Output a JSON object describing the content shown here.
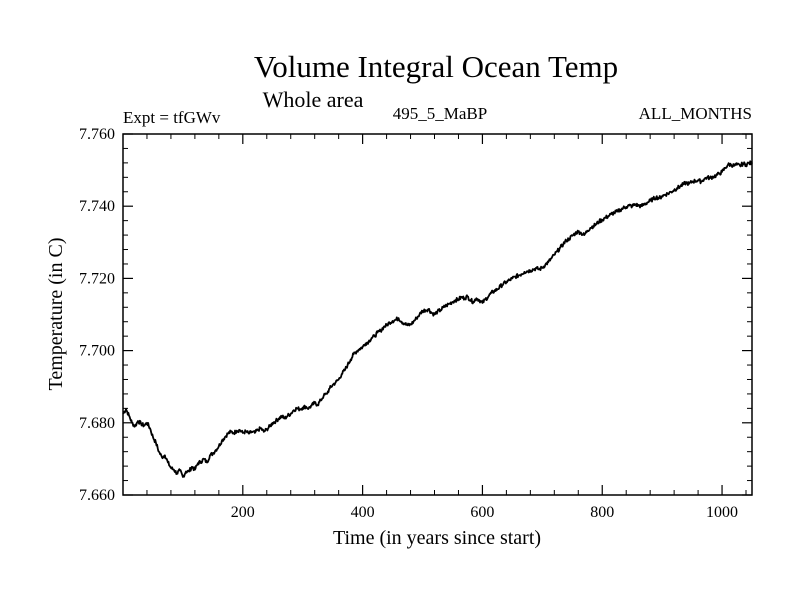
{
  "chart_data": {
    "type": "line",
    "title": "Volume Integral Ocean Temp",
    "subtitle": "Whole area",
    "annotations": {
      "left": "Expt = tfGWv",
      "center": "495_5_MaBP",
      "right": "ALL_MONTHS"
    },
    "xlabel": "Time (in years since start)",
    "ylabel": "Temperature (in C)",
    "xlim": [
      0,
      1050
    ],
    "ylim": [
      7.66,
      7.76
    ],
    "x_ticks": [
      200,
      400,
      600,
      800,
      1000
    ],
    "x_tick_labels": [
      "200",
      "400",
      "600",
      "800",
      "1000"
    ],
    "y_ticks": [
      7.66,
      7.68,
      7.7,
      7.72,
      7.74,
      7.76
    ],
    "y_tick_labels": [
      "7.660",
      "7.680",
      "7.700",
      "7.720",
      "7.740",
      "7.760"
    ],
    "grid": false,
    "series": [
      {
        "name": "Volume Integral Ocean Temp",
        "color": "#000000",
        "points": [
          [
            0,
            7.6825
          ],
          [
            5,
            7.6838
          ],
          [
            10,
            7.682
          ],
          [
            15,
            7.68
          ],
          [
            20,
            7.679
          ],
          [
            25,
            7.6805
          ],
          [
            30,
            7.6798
          ],
          [
            35,
            7.6792
          ],
          [
            40,
            7.68
          ],
          [
            45,
            7.6785
          ],
          [
            50,
            7.676
          ],
          [
            55,
            7.6745
          ],
          [
            60,
            7.672
          ],
          [
            65,
            7.6705
          ],
          [
            70,
            7.671
          ],
          [
            75,
            7.669
          ],
          [
            80,
            7.6675
          ],
          [
            85,
            7.667
          ],
          [
            90,
            7.666
          ],
          [
            95,
            7.6668
          ],
          [
            100,
            7.665
          ],
          [
            105,
            7.6665
          ],
          [
            110,
            7.6665
          ],
          [
            115,
            7.6678
          ],
          [
            120,
            7.667
          ],
          [
            125,
            7.6688
          ],
          [
            130,
            7.6692
          ],
          [
            135,
            7.67
          ],
          [
            140,
            7.669
          ],
          [
            145,
            7.671
          ],
          [
            150,
            7.6715
          ],
          [
            155,
            7.6725
          ],
          [
            160,
            7.6735
          ],
          [
            165,
            7.675
          ],
          [
            170,
            7.676
          ],
          [
            175,
            7.677
          ],
          [
            180,
            7.6775
          ],
          [
            185,
            7.6772
          ],
          [
            190,
            7.6778
          ],
          [
            195,
            7.678
          ],
          [
            200,
            7.6772
          ],
          [
            205,
            7.6776
          ],
          [
            210,
            7.677
          ],
          [
            215,
            7.6775
          ],
          [
            220,
            7.6772
          ],
          [
            225,
            7.678
          ],
          [
            230,
            7.6785
          ],
          [
            235,
            7.6775
          ],
          [
            240,
            7.6782
          ],
          [
            245,
            7.679
          ],
          [
            250,
            7.68
          ],
          [
            255,
            7.6805
          ],
          [
            260,
            7.6812
          ],
          [
            265,
            7.6818
          ],
          [
            270,
            7.6812
          ],
          [
            275,
            7.682
          ],
          [
            280,
            7.6825
          ],
          [
            285,
            7.6835
          ],
          [
            290,
            7.684
          ],
          [
            295,
            7.6838
          ],
          [
            300,
            7.6842
          ],
          [
            305,
            7.6845
          ],
          [
            310,
            7.684
          ],
          [
            315,
            7.6848
          ],
          [
            320,
            7.6855
          ],
          [
            325,
            7.685
          ],
          [
            330,
            7.6862
          ],
          [
            335,
            7.6875
          ],
          [
            340,
            7.688
          ],
          [
            345,
            7.6895
          ],
          [
            350,
            7.6905
          ],
          [
            355,
            7.6912
          ],
          [
            360,
            7.692
          ],
          [
            365,
            7.6935
          ],
          [
            370,
            7.6945
          ],
          [
            375,
            7.696
          ],
          [
            380,
            7.6975
          ],
          [
            385,
            7.699
          ],
          [
            390,
            7.6998
          ],
          [
            395,
            7.7005
          ],
          [
            400,
            7.701
          ],
          [
            405,
            7.702
          ],
          [
            410,
            7.7025
          ],
          [
            415,
            7.7035
          ],
          [
            420,
            7.704
          ],
          [
            425,
            7.705
          ],
          [
            430,
            7.7055
          ],
          [
            435,
            7.7065
          ],
          [
            440,
            7.707
          ],
          [
            445,
            7.7078
          ],
          [
            450,
            7.7082
          ],
          [
            455,
            7.7085
          ],
          [
            460,
            7.709
          ],
          [
            465,
            7.708
          ],
          [
            470,
            7.7075
          ],
          [
            475,
            7.707
          ],
          [
            480,
            7.7072
          ],
          [
            485,
            7.708
          ],
          [
            490,
            7.709
          ],
          [
            495,
            7.71
          ],
          [
            500,
            7.711
          ],
          [
            505,
            7.7112
          ],
          [
            510,
            7.7115
          ],
          [
            515,
            7.7105
          ],
          [
            520,
            7.71
          ],
          [
            525,
            7.7108
          ],
          [
            530,
            7.7112
          ],
          [
            535,
            7.712
          ],
          [
            540,
            7.7125
          ],
          [
            545,
            7.713
          ],
          [
            550,
            7.7135
          ],
          [
            555,
            7.714
          ],
          [
            560,
            7.7142
          ],
          [
            565,
            7.7148
          ],
          [
            570,
            7.7145
          ],
          [
            575,
            7.715
          ],
          [
            580,
            7.714
          ],
          [
            585,
            7.7135
          ],
          [
            590,
            7.7145
          ],
          [
            595,
            7.714
          ],
          [
            600,
            7.7132
          ],
          [
            605,
            7.7142
          ],
          [
            610,
            7.715
          ],
          [
            615,
            7.716
          ],
          [
            620,
            7.7165
          ],
          [
            625,
            7.717
          ],
          [
            630,
            7.7178
          ],
          [
            635,
            7.7185
          ],
          [
            640,
            7.719
          ],
          [
            645,
            7.7195
          ],
          [
            650,
            7.72
          ],
          [
            655,
            7.7205
          ],
          [
            660,
            7.7208
          ],
          [
            665,
            7.7212
          ],
          [
            670,
            7.7218
          ],
          [
            675,
            7.722
          ],
          [
            680,
            7.7222
          ],
          [
            685,
            7.7225
          ],
          [
            690,
            7.7228
          ],
          [
            695,
            7.7225
          ],
          [
            700,
            7.723
          ],
          [
            705,
            7.7238
          ],
          [
            710,
            7.7245
          ],
          [
            715,
            7.7255
          ],
          [
            720,
            7.7265
          ],
          [
            725,
            7.7275
          ],
          [
            730,
            7.7285
          ],
          [
            735,
            7.7295
          ],
          [
            740,
            7.7305
          ],
          [
            745,
            7.731
          ],
          [
            750,
            7.7318
          ],
          [
            755,
            7.7325
          ],
          [
            760,
            7.733
          ],
          [
            765,
            7.7325
          ],
          [
            770,
            7.732
          ],
          [
            775,
            7.7332
          ],
          [
            780,
            7.734
          ],
          [
            785,
            7.7345
          ],
          [
            790,
            7.735
          ],
          [
            795,
            7.7358
          ],
          [
            800,
            7.7362
          ],
          [
            805,
            7.7368
          ],
          [
            810,
            7.7372
          ],
          [
            815,
            7.7378
          ],
          [
            820,
            7.7382
          ],
          [
            825,
            7.7385
          ],
          [
            830,
            7.739
          ],
          [
            835,
            7.7395
          ],
          [
            840,
            7.7398
          ],
          [
            845,
            7.7402
          ],
          [
            850,
            7.74
          ],
          [
            855,
            7.7405
          ],
          [
            860,
            7.7402
          ],
          [
            865,
            7.74
          ],
          [
            870,
            7.7405
          ],
          [
            875,
            7.741
          ],
          [
            880,
            7.7415
          ],
          [
            885,
            7.742
          ],
          [
            890,
            7.7425
          ],
          [
            895,
            7.7422
          ],
          [
            900,
            7.7428
          ],
          [
            905,
            7.7432
          ],
          [
            910,
            7.7435
          ],
          [
            915,
            7.744
          ],
          [
            920,
            7.7445
          ],
          [
            925,
            7.745
          ],
          [
            930,
            7.7455
          ],
          [
            935,
            7.746
          ],
          [
            940,
            7.7465
          ],
          [
            945,
            7.7462
          ],
          [
            950,
            7.7468
          ],
          [
            955,
            7.747
          ],
          [
            960,
            7.7472
          ],
          [
            965,
            7.7468
          ],
          [
            970,
            7.7475
          ],
          [
            975,
            7.748
          ],
          [
            980,
            7.7478
          ],
          [
            985,
            7.7482
          ],
          [
            990,
            7.7485
          ],
          [
            995,
            7.749
          ],
          [
            1000,
            7.7495
          ],
          [
            1005,
            7.7505
          ],
          [
            1010,
            7.7515
          ],
          [
            1015,
            7.7515
          ],
          [
            1020,
            7.7512
          ],
          [
            1025,
            7.7515
          ],
          [
            1030,
            7.7512
          ],
          [
            1035,
            7.7518
          ],
          [
            1040,
            7.7515
          ],
          [
            1045,
            7.752
          ],
          [
            1050,
            7.7518
          ]
        ]
      }
    ]
  }
}
